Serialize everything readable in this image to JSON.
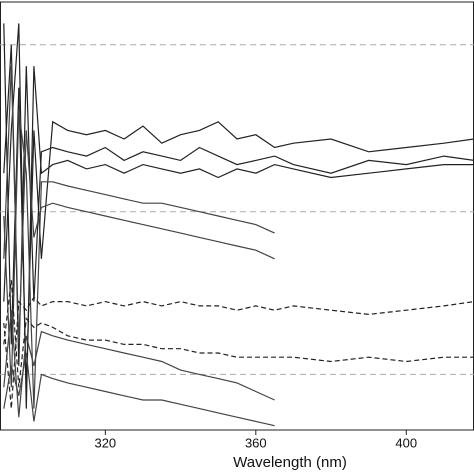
{
  "chart_data": {
    "type": "line",
    "x_label": "Wavelength (nm)",
    "x": [
      293,
      295,
      297,
      299,
      301,
      303,
      306,
      310,
      315,
      320,
      325,
      330,
      335,
      340,
      345,
      350,
      355,
      360,
      365,
      370,
      380,
      390,
      400,
      410,
      418
    ],
    "series": [
      {
        "color": "#222222",
        "dashed": false,
        "values": [
          95,
          20,
          80,
          10,
          70,
          40,
          72,
          70,
          69,
          70,
          68,
          71,
          67,
          69,
          70,
          72,
          68,
          69,
          66,
          67,
          68,
          65,
          66,
          67,
          68
        ]
      },
      {
        "color": "#222222",
        "dashed": false,
        "values": [
          60,
          90,
          15,
          85,
          30,
          65,
          66,
          65,
          64,
          66,
          63,
          65,
          64,
          63,
          66,
          64,
          62,
          63,
          64,
          62,
          60,
          63,
          62,
          64,
          63
        ]
      },
      {
        "color": "#222222",
        "dashed": false,
        "values": [
          30,
          70,
          95,
          5,
          85,
          60,
          62,
          63,
          61,
          62,
          60,
          62,
          61,
          60,
          61,
          59,
          61,
          60,
          62,
          61,
          59,
          60,
          61,
          62,
          62
        ]
      },
      {
        "color": "#444444",
        "dashed": false,
        "values": [
          50,
          10,
          75,
          60,
          5,
          58,
          58,
          57,
          56,
          55,
          54,
          53,
          53,
          52,
          51,
          50,
          49,
          48,
          46,
          null,
          null,
          null,
          null,
          null,
          null
        ]
      },
      {
        "color": "#444444",
        "dashed": false,
        "values": [
          40,
          85,
          20,
          70,
          45,
          52,
          53,
          52,
          51,
          50,
          49,
          48,
          47,
          46,
          45,
          44,
          43,
          42,
          40,
          null,
          null,
          null,
          null,
          null,
          null
        ]
      },
      {
        "color": "#222222",
        "dashed": true,
        "values": [
          25,
          5,
          30,
          28,
          31,
          29,
          30,
          30,
          29,
          30,
          29,
          30,
          29,
          30,
          29,
          29,
          28,
          29,
          28,
          29,
          28,
          27,
          28,
          29,
          30
        ]
      },
      {
        "color": "#222222",
        "dashed": true,
        "values": [
          20,
          35,
          10,
          26,
          24,
          25,
          24,
          22,
          21,
          21,
          20,
          20,
          19,
          19,
          18,
          18,
          17,
          17,
          17,
          17,
          16,
          17,
          16,
          17,
          17
        ]
      },
      {
        "color": "#444444",
        "dashed": false,
        "values": [
          10,
          28,
          3,
          22,
          15,
          23,
          22,
          21,
          20,
          19,
          18,
          17,
          16,
          14,
          13,
          12,
          11,
          9,
          7,
          null,
          null,
          null,
          null,
          null,
          null
        ]
      },
      {
        "color": "#444444",
        "dashed": false,
        "values": [
          5,
          15,
          8,
          18,
          2,
          13,
          12,
          11,
          10,
          9,
          8,
          7,
          7,
          6,
          5,
          4,
          3,
          2,
          1,
          null,
          null,
          null,
          null,
          null,
          null
        ]
      }
    ],
    "xlim": [
      292,
      418
    ],
    "xticks": [
      320,
      360,
      400
    ],
    "ylim": [
      0,
      100
    ],
    "reference_lines": [
      90,
      51,
      13
    ]
  }
}
